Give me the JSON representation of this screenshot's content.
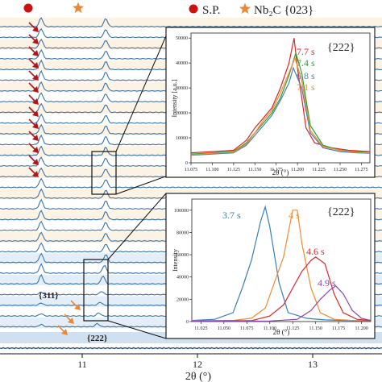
{
  "figure": {
    "legend": [
      {
        "label": "S.P.",
        "marker": "circle",
        "color": "#cc1111"
      },
      {
        "label": "Nb₂C {023}",
        "marker": "star",
        "color": "#e8883a"
      }
    ],
    "xlabel": "2θ (°)",
    "x_ticks": [
      "11",
      "12",
      "13"
    ],
    "stack_annotations": [
      "{311}",
      "{222}"
    ],
    "arrow_colors": {
      "red": "#b0141c",
      "orange": "#e8883a"
    },
    "trace_color": "#3a74a8"
  },
  "chart_data": [
    {
      "type": "line",
      "description_role": "main waterfall of diffraction patterns (stacked, offset vertically)",
      "xlabel": "2θ (°)",
      "xlim": [
        10.3,
        13.55
      ],
      "x_ticks": [
        11,
        12,
        13
      ],
      "trace_count": 29,
      "peaks_2theta": [
        10.65,
        11.2
      ],
      "band_colors": [
        "#fdf3e4",
        "#e4eef8"
      ],
      "annotations": [
        "{311}",
        "{222}"
      ]
    },
    {
      "type": "line",
      "title": "{222}",
      "xlabel": "2θ (°)",
      "ylabel": "Intensity [a.u.]",
      "xlim": [
        11.075,
        11.285
      ],
      "ylim": [
        0,
        52000
      ],
      "x_ticks": [
        "11.075",
        "11.100",
        "11.125",
        "11.150",
        "11.175",
        "11.200",
        "11.225",
        "11.250",
        "11.275"
      ],
      "y_ticks": [
        "0",
        "10000",
        "20000",
        "30000",
        "40000",
        "50000"
      ],
      "series": [
        {
          "name": "7.7 s",
          "color": "#d62728",
          "x": [
            11.075,
            11.1,
            11.125,
            11.14,
            11.15,
            11.16,
            11.17,
            11.18,
            11.19,
            11.196,
            11.2,
            11.21,
            11.22,
            11.24,
            11.26,
            11.285
          ],
          "y": [
            4000,
            4500,
            5000,
            9000,
            14000,
            18000,
            22000,
            30000,
            40000,
            50000,
            38000,
            14000,
            8000,
            6000,
            5000,
            4500
          ]
        },
        {
          "name": "7.4 s",
          "color": "#2ca02c",
          "x": [
            11.075,
            11.1,
            11.125,
            11.14,
            11.15,
            11.16,
            11.17,
            11.18,
            11.19,
            11.198,
            11.205,
            11.215,
            11.23,
            11.25,
            11.27,
            11.285
          ],
          "y": [
            3500,
            4000,
            4500,
            8000,
            12000,
            16000,
            20000,
            26000,
            35000,
            44000,
            36000,
            15000,
            7000,
            5000,
            4500,
            4000
          ]
        },
        {
          "name": "6.8 s",
          "color": "#4a7fb5",
          "x": [
            11.075,
            11.1,
            11.125,
            11.14,
            11.15,
            11.16,
            11.17,
            11.18,
            11.19,
            11.195,
            11.205,
            11.215,
            11.23,
            11.25,
            11.27,
            11.285
          ],
          "y": [
            3000,
            3500,
            4000,
            7000,
            11000,
            15000,
            19000,
            25000,
            32000,
            38000,
            30000,
            12000,
            6000,
            4500,
            4000,
            3800
          ]
        },
        {
          "name": "7.1 s",
          "color": "#f08a30",
          "x": [
            11.075,
            11.1,
            11.125,
            11.14,
            11.15,
            11.16,
            11.17,
            11.18,
            11.19,
            11.197,
            11.205,
            11.215,
            11.23,
            11.25,
            11.27,
            11.285
          ],
          "y": [
            3200,
            3800,
            4200,
            7500,
            12000,
            17000,
            21000,
            28000,
            36000,
            42000,
            33000,
            13000,
            6500,
            5000,
            4200,
            4000
          ]
        }
      ]
    },
    {
      "type": "line",
      "title": "{222}",
      "xlabel": "2θ (°)",
      "ylabel": "Intensity",
      "xlim": [
        11.015,
        11.21
      ],
      "ylim": [
        0,
        110000
      ],
      "x_ticks": [
        "11.025",
        "11.050",
        "11.075",
        "11.100",
        "11.125",
        "11.150",
        "11.175",
        "11.200"
      ],
      "y_ticks": [
        "0",
        "20000",
        "40000",
        "60000",
        "80000",
        "100000"
      ],
      "series": [
        {
          "name": "3.7 s",
          "color": "#3a7fb5",
          "x": [
            11.015,
            11.04,
            11.06,
            11.07,
            11.08,
            11.09,
            11.095,
            11.1,
            11.11,
            11.12,
            11.14,
            11.16,
            11.18,
            11.21
          ],
          "y": [
            1000,
            2000,
            8000,
            30000,
            55000,
            90000,
            103000,
            85000,
            35000,
            8000,
            3000,
            1500,
            1000,
            800
          ]
        },
        {
          "name": "4 s",
          "color": "#f08a30",
          "x": [
            11.015,
            11.06,
            11.08,
            11.095,
            11.105,
            11.115,
            11.125,
            11.13,
            11.135,
            11.145,
            11.155,
            11.17,
            11.19,
            11.21
          ],
          "y": [
            800,
            1000,
            3000,
            12000,
            35000,
            58000,
            100000,
            100000,
            70000,
            30000,
            8000,
            2000,
            1000,
            800
          ]
        },
        {
          "name": "4.6 s",
          "color": "#d62728",
          "x": [
            11.015,
            11.08,
            11.1,
            11.115,
            11.125,
            11.135,
            11.145,
            11.15,
            11.16,
            11.17,
            11.18,
            11.195,
            11.21
          ],
          "y": [
            500,
            800,
            5000,
            15000,
            30000,
            45000,
            55000,
            58000,
            52000,
            25000,
            8000,
            2000,
            1000
          ]
        },
        {
          "name": "4.9 s",
          "color": "#8e44ad",
          "x": [
            11.015,
            11.1,
            11.13,
            11.145,
            11.155,
            11.165,
            11.172,
            11.18,
            11.19,
            11.2,
            11.21
          ],
          "y": [
            300,
            500,
            2000,
            10000,
            20000,
            28000,
            32000,
            25000,
            10000,
            3000,
            1000
          ]
        }
      ]
    }
  ]
}
